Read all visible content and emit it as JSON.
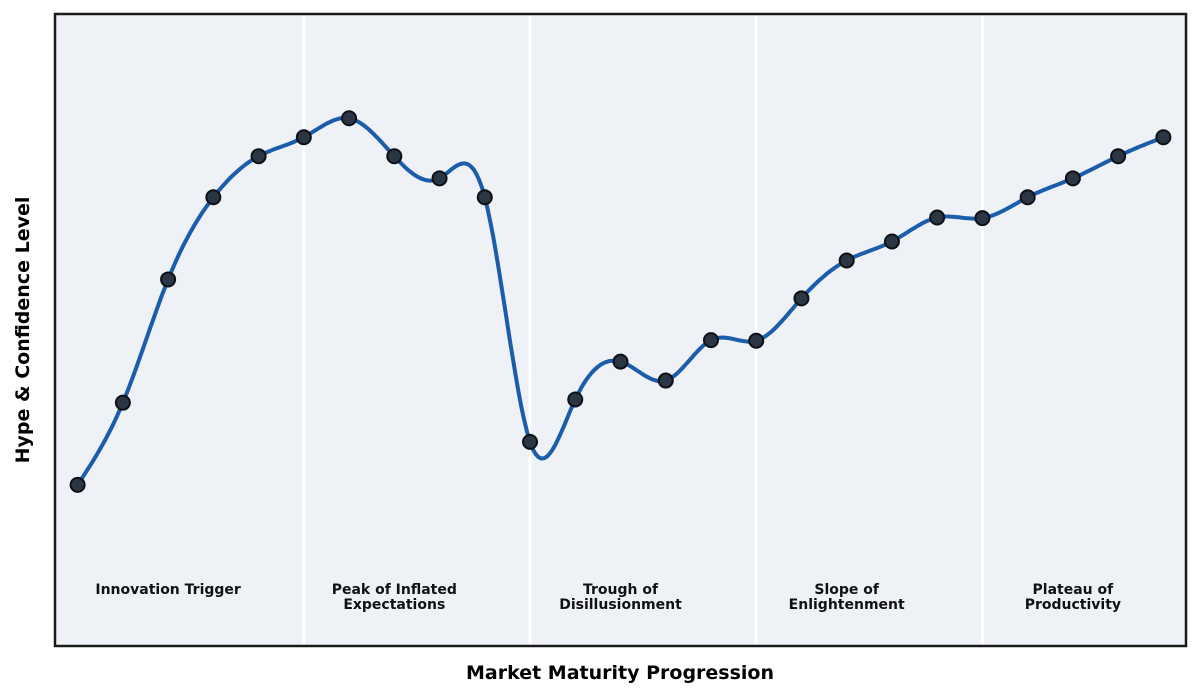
{
  "figure": {
    "background": "#ffffff",
    "plot_background": "#eef2f7",
    "border_color": "#1a1a1a",
    "divider_color": "#ffffff"
  },
  "chart_data": {
    "type": "line",
    "xlabel": "Market Maturity Progression",
    "ylabel": "Hype & Confidence Level",
    "x": [
      0,
      1,
      2,
      3,
      4,
      5,
      6,
      7,
      8,
      9,
      10,
      11,
      12,
      13,
      14,
      15,
      16,
      17,
      18,
      19,
      20,
      21,
      22,
      23,
      24
    ],
    "series": [
      {
        "name": "Hype & Confidence",
        "color": "#1b5dab",
        "marker_color": "#2b3644",
        "marker_edge_color": "#0d1117",
        "values": [
          25.5,
          38.5,
          58,
          71,
          77.5,
          80.5,
          83.5,
          77.5,
          74,
          71,
          32.3,
          39,
          45,
          42,
          48.4,
          48.3,
          55,
          61,
          64,
          67.8,
          67.7,
          71,
          74,
          77.5,
          80.5
        ]
      }
    ],
    "xlim": [
      -0.5,
      24.5
    ],
    "ylim": [
      0,
      100
    ],
    "grid": false,
    "legend": false,
    "smoothing": "cubic-spline",
    "ticks": "none",
    "phase_boundaries_x": [
      5,
      10,
      15,
      20
    ],
    "phases": [
      {
        "label": "Innovation Trigger",
        "center_x": 2
      },
      {
        "label": "Peak of Inflated\nExpectations",
        "center_x": 7
      },
      {
        "label": "Trough of\nDisillusionment",
        "center_x": 12
      },
      {
        "label": "Slope of\nEnlightenment",
        "center_x": 17
      },
      {
        "label": "Plateau of\nProductivity",
        "center_x": 22
      }
    ]
  }
}
